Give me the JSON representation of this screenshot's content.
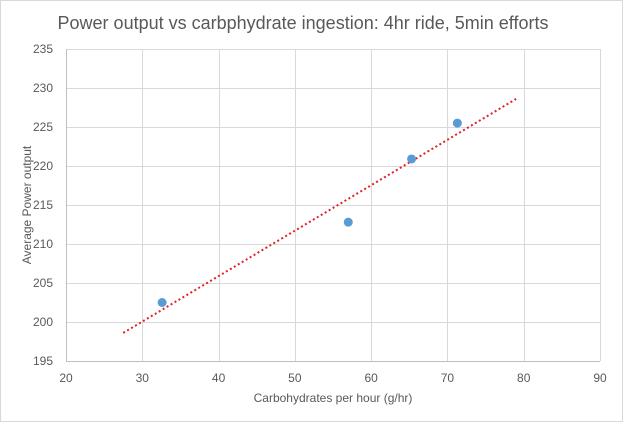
{
  "chart_data": {
    "type": "scatter",
    "title": "Power output vs carbphydrate ingestion: 4hr ride, 5min efforts",
    "xlabel": "Carbohydrates per hour (g/hr)",
    "ylabel": "Average Power output",
    "xlim": [
      20,
      90
    ],
    "ylim": [
      195,
      235
    ],
    "xticks": [
      20,
      30,
      40,
      50,
      60,
      70,
      80,
      90
    ],
    "yticks": [
      195,
      200,
      205,
      210,
      215,
      220,
      225,
      230,
      235
    ],
    "grid": true,
    "legend": "none",
    "series": [
      {
        "name": "Average Power output",
        "color": "#5b9bd5",
        "points": [
          {
            "x": 32.6,
            "y": 202.5
          },
          {
            "x": 57.0,
            "y": 212.8
          },
          {
            "x": 65.3,
            "y": 220.9
          },
          {
            "x": 71.3,
            "y": 225.5
          }
        ]
      }
    ],
    "trendline": {
      "type": "linear",
      "style": "dotted",
      "color": "#e0202a",
      "x_start": 27.5,
      "x_end": 79.0,
      "y_start": 198.6,
      "y_end": 228.6
    }
  }
}
